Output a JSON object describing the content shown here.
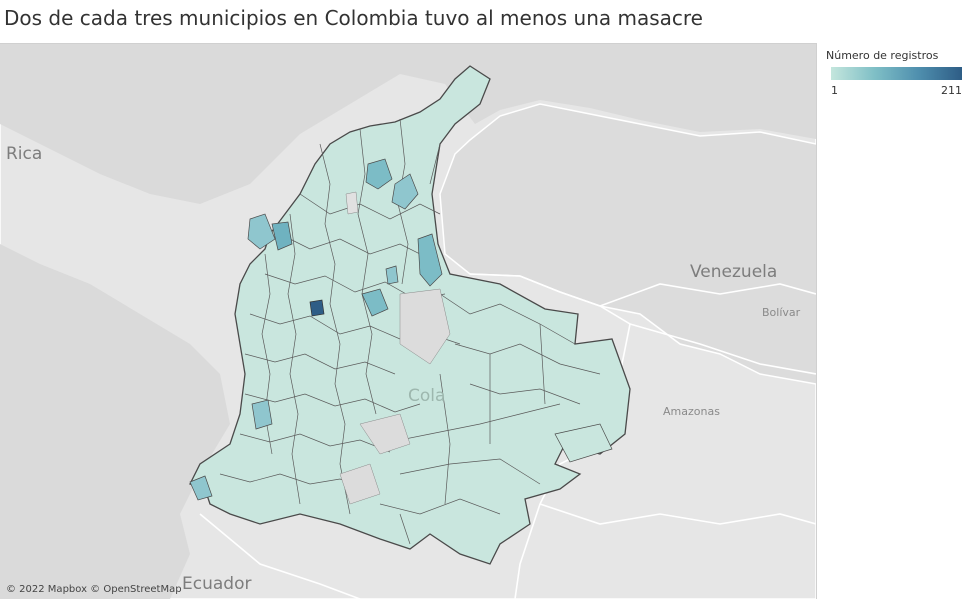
{
  "title": "Dos de cada tres municipios en Colombia tuvo al menos una masacre",
  "legend": {
    "title": "Número de registros",
    "min": "1",
    "max": "211",
    "color_low": "#c4e6dd",
    "color_high": "#2e5d86"
  },
  "map_labels": {
    "rica": "Rica",
    "venezuela": "Venezuela",
    "bolivar": "Bolívar",
    "amazonas": "Amazonas",
    "ecuador": "Ecuador",
    "colombia_partial": "Cola"
  },
  "attribution": "© 2022 Mapbox © OpenStreetMap",
  "colors": {
    "background": "#e3e3e3",
    "land_neighbors": "#e8e8e8",
    "country_fill": "#c9e6de",
    "border": "#555555",
    "borders_intl": "#ffffff"
  }
}
